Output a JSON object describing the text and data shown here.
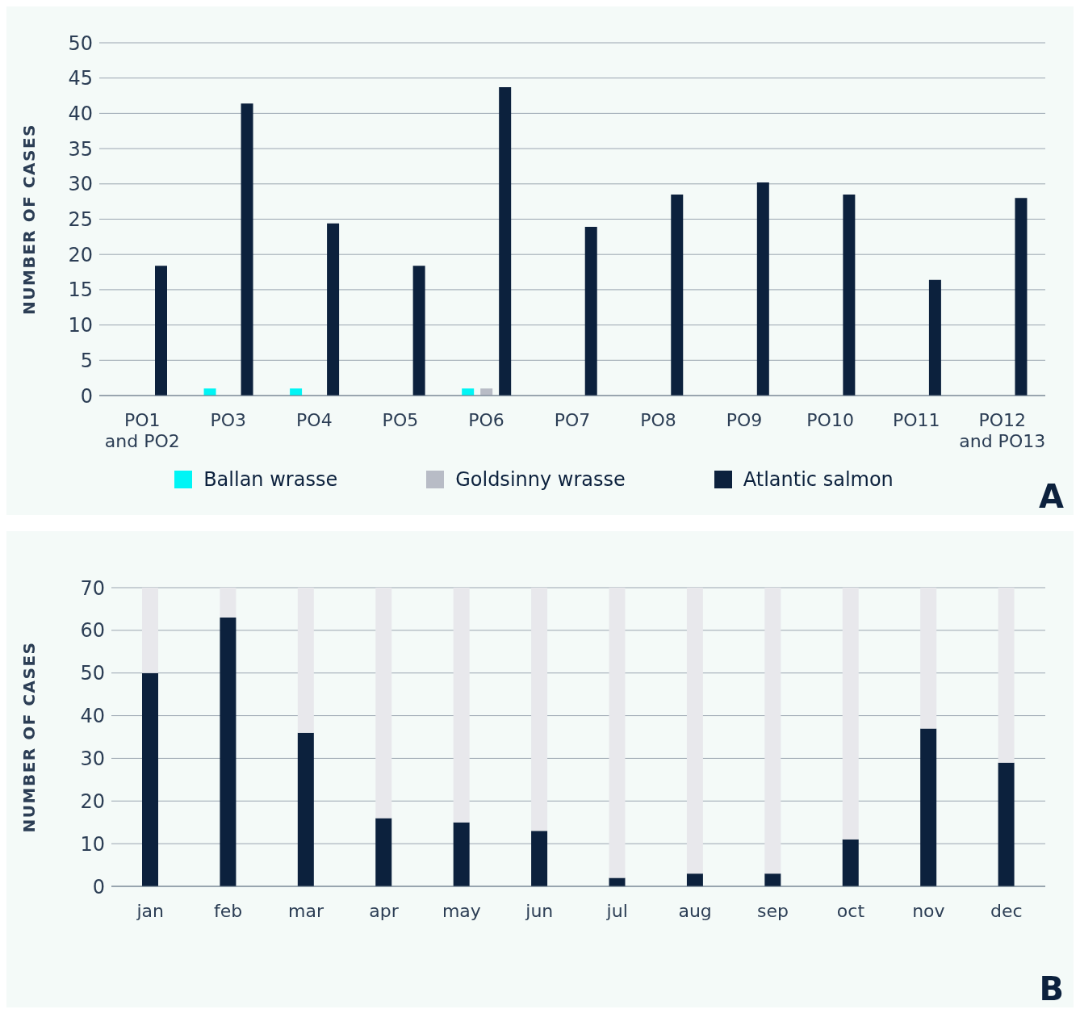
{
  "chart_data": [
    {
      "type": "bar",
      "ylabel": "NUMBER OF CASES",
      "categories": [
        "PO1 and PO2",
        "PO3",
        "PO4",
        "PO5",
        "PO6",
        "PO7",
        "PO8",
        "PO9",
        "PO10",
        "PO11",
        "PO12 and PO13"
      ],
      "series": [
        {
          "name": "Ballan wrasse",
          "color": "#00f5f5",
          "values": [
            0,
            1,
            1,
            0,
            1,
            0,
            0,
            0,
            0,
            0,
            0
          ]
        },
        {
          "name": "Goldsinny wrasse",
          "color": "#b8bcc6",
          "values": [
            0,
            0,
            0,
            0,
            1,
            0,
            0,
            0,
            0,
            0,
            0
          ]
        },
        {
          "name": "Atlantic salmon",
          "color": "#0c213d",
          "values": [
            18.4,
            41.4,
            24.4,
            18.4,
            43.7,
            23.9,
            28.5,
            30.2,
            28.5,
            16.4,
            28
          ]
        }
      ],
      "ylim": [
        0,
        50
      ],
      "yticks": [
        0,
        5,
        10,
        15,
        20,
        25,
        30,
        35,
        40,
        45,
        50
      ],
      "grid": "y",
      "legend": "bottom",
      "annotations": [
        "A"
      ]
    },
    {
      "type": "bar",
      "ylabel": "NUMBER OF CASES",
      "categories": [
        "jan",
        "feb",
        "mar",
        "apr",
        "may",
        "jun",
        "jul",
        "aug",
        "sep",
        "oct",
        "nov",
        "dec"
      ],
      "stacked": true,
      "series": [
        {
          "color": "#0c213d",
          "values": [
            50,
            63,
            36,
            16,
            15,
            13,
            2,
            3,
            3,
            11,
            37,
            29
          ]
        },
        {
          "color": "#e8e8ec",
          "values": [
            20,
            7,
            34,
            54,
            55,
            57,
            68,
            67,
            67,
            59,
            33,
            41
          ]
        }
      ],
      "ylim": [
        0,
        70
      ],
      "yticks": [
        0,
        10,
        20,
        30,
        40,
        50,
        60,
        70
      ],
      "grid": "y",
      "annotations": [
        "B"
      ]
    }
  ]
}
